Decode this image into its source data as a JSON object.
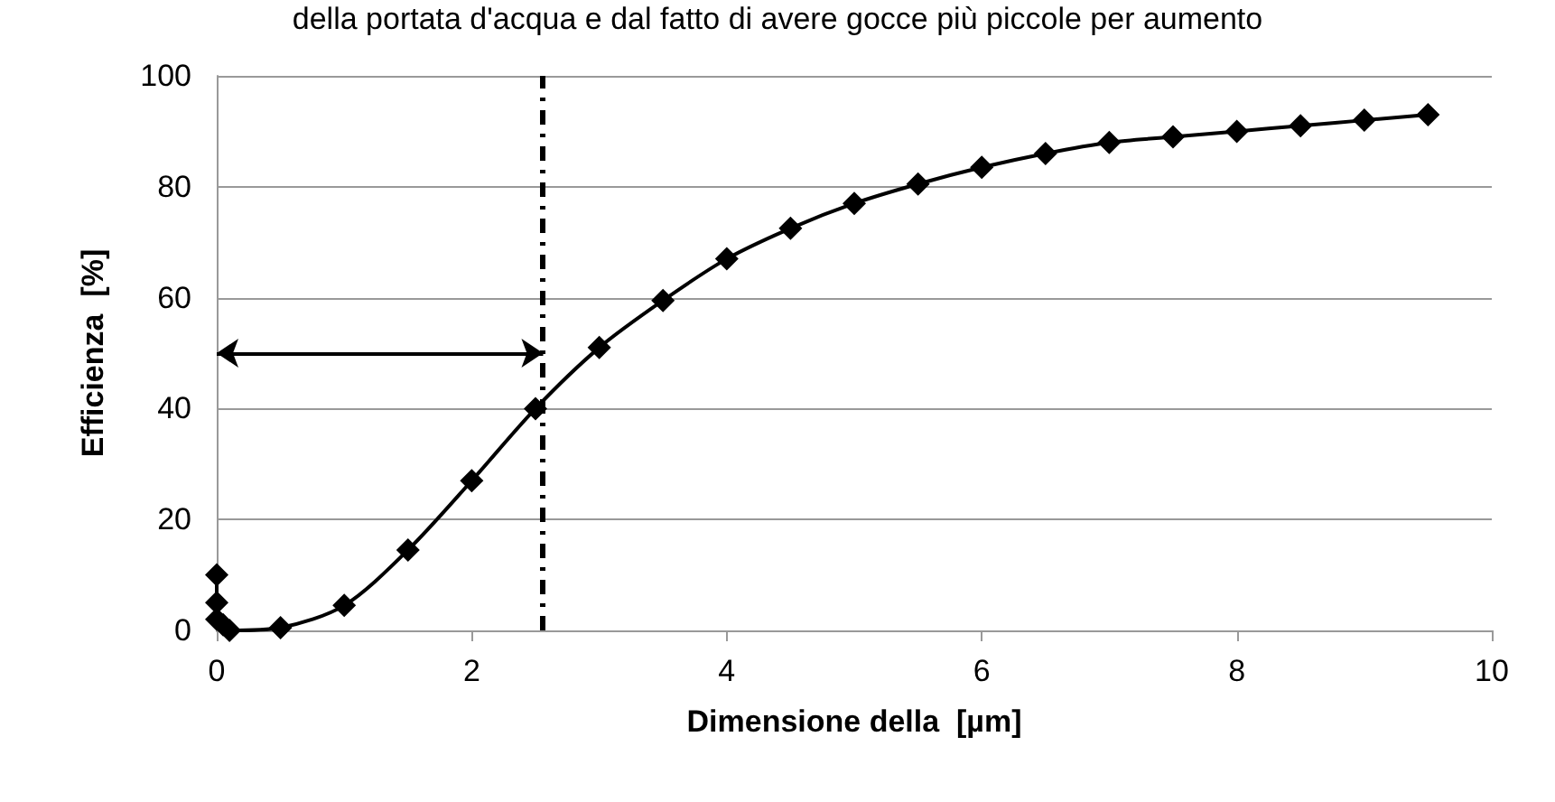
{
  "chart_data": {
    "type": "line",
    "annotations": [
      "della portata d'acqua e dal fatto di avere gocce più piccole per aumento"
    ],
    "xlabel": "Dimensione della  [µm]",
    "ylabel": "Efficienza  [%]",
    "x": [
      0,
      0,
      0,
      0.05,
      0.1,
      0.5,
      1,
      1.5,
      2,
      2.5,
      3,
      3.5,
      4,
      4.5,
      5,
      5.5,
      6,
      6.5,
      7,
      7.5,
      8,
      8.5,
      9,
      9.5
    ],
    "series": [
      {
        "color": "#000000",
        "values": [
          10,
          5,
          2,
          1,
          0,
          0.5,
          4.5,
          14.5,
          27,
          40,
          51,
          59.5,
          67,
          72.5,
          77,
          80.5,
          83.5,
          86,
          88,
          89,
          90,
          91,
          92,
          93
        ]
      }
    ],
    "xlim": [
      0,
      10
    ],
    "xticks": [
      0,
      2,
      4,
      6,
      8,
      10
    ],
    "ylim": [
      0,
      100
    ],
    "yticks": [
      0,
      20,
      40,
      60,
      80,
      100
    ],
    "grid": "y",
    "marker": "diamond",
    "line_style": "solid",
    "ref_lines": [
      {
        "axis": "x",
        "value": 2.56,
        "line_style": "dashed",
        "color": "#000000"
      }
    ]
  }
}
